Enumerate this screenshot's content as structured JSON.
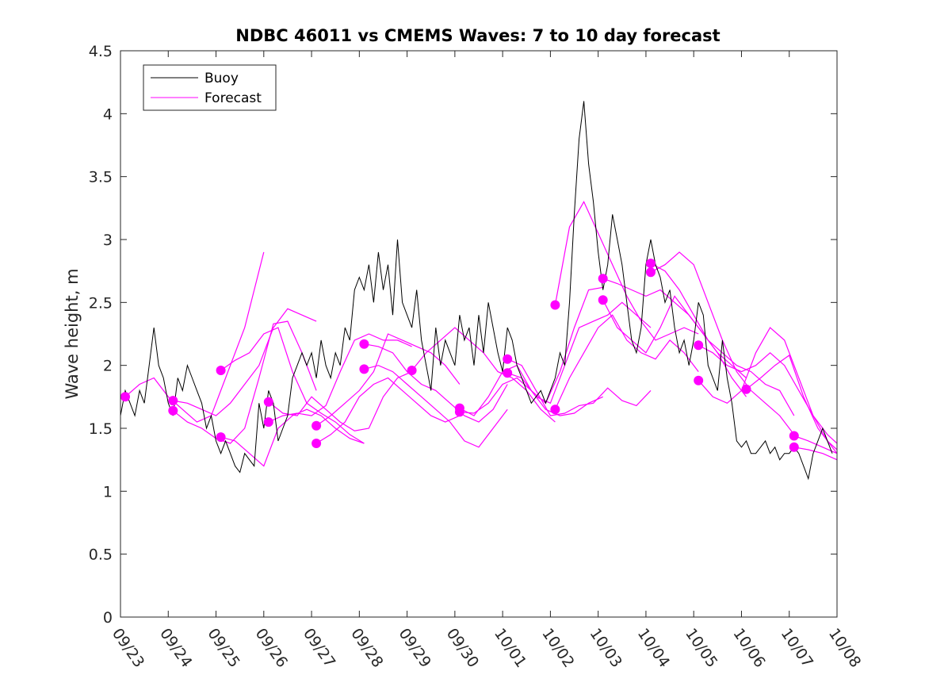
{
  "chart_data": {
    "type": "line",
    "title": "NDBC 46011 vs CMEMS Waves: 7 to 10 day forecast",
    "xlabel": "",
    "ylabel": "Wave height, m",
    "xlim": [
      0,
      15
    ],
    "ylim": [
      0,
      4.5
    ],
    "yticks": [
      0,
      0.5,
      1,
      1.5,
      2,
      2.5,
      3,
      3.5,
      4,
      4.5
    ],
    "ytick_labels": [
      "0",
      "0.5",
      "1",
      "1.5",
      "2",
      "2.5",
      "3",
      "3.5",
      "4",
      "4.5"
    ],
    "xtick_labels": [
      "09/23",
      "09/24",
      "09/25",
      "09/26",
      "09/27",
      "09/28",
      "09/29",
      "09/30",
      "10/01",
      "10/02",
      "10/03",
      "10/04",
      "10/05",
      "10/06",
      "10/07",
      "10/08"
    ],
    "legend": {
      "placement": "top-left",
      "entries": [
        "Buoy",
        "Forecast"
      ]
    },
    "colors": {
      "buoy": "#000000",
      "forecast": "#ff00ff"
    },
    "buoy": {
      "name": "Buoy",
      "x": [
        0,
        0.1,
        0.2,
        0.3,
        0.4,
        0.5,
        0.6,
        0.7,
        0.8,
        0.9,
        1.0,
        1.1,
        1.2,
        1.3,
        1.4,
        1.5,
        1.6,
        1.7,
        1.8,
        1.9,
        2.0,
        2.1,
        2.2,
        2.3,
        2.4,
        2.5,
        2.6,
        2.7,
        2.8,
        2.9,
        3.0,
        3.1,
        3.2,
        3.3,
        3.4,
        3.5,
        3.6,
        3.7,
        3.8,
        3.9,
        4.0,
        4.1,
        4.2,
        4.3,
        4.4,
        4.5,
        4.6,
        4.7,
        4.8,
        4.9,
        5.0,
        5.1,
        5.2,
        5.3,
        5.4,
        5.5,
        5.6,
        5.7,
        5.8,
        5.9,
        6.0,
        6.1,
        6.2,
        6.3,
        6.4,
        6.5,
        6.6,
        6.7,
        6.8,
        6.9,
        7.0,
        7.1,
        7.2,
        7.3,
        7.4,
        7.5,
        7.6,
        7.7,
        7.8,
        7.9,
        8.0,
        8.1,
        8.2,
        8.3,
        8.4,
        8.5,
        8.6,
        8.7,
        8.8,
        8.9,
        9.0,
        9.1,
        9.2,
        9.3,
        9.4,
        9.5,
        9.6,
        9.7,
        9.8,
        9.9,
        10.0,
        10.1,
        10.2,
        10.3,
        10.4,
        10.5,
        10.6,
        10.7,
        10.8,
        10.9,
        11.0,
        11.1,
        11.2,
        11.3,
        11.4,
        11.5,
        11.6,
        11.7,
        11.8,
        11.9,
        12.0,
        12.1,
        12.2,
        12.3,
        12.4,
        12.5,
        12.6,
        12.7,
        12.8,
        12.9,
        13.0,
        13.1,
        13.2,
        13.3,
        13.4,
        13.5,
        13.6,
        13.7,
        13.8,
        13.9,
        14.0,
        14.1,
        14.2,
        14.3,
        14.4,
        14.5,
        14.6,
        14.7,
        14.8,
        14.9
      ],
      "values": [
        1.6,
        1.8,
        1.7,
        1.6,
        1.8,
        1.7,
        2.0,
        2.3,
        2.0,
        1.9,
        1.7,
        1.6,
        1.9,
        1.8,
        2.0,
        1.9,
        1.8,
        1.7,
        1.5,
        1.6,
        1.4,
        1.3,
        1.4,
        1.3,
        1.2,
        1.15,
        1.3,
        1.25,
        1.2,
        1.7,
        1.5,
        1.8,
        1.7,
        1.4,
        1.5,
        1.6,
        1.9,
        2.0,
        2.1,
        2.0,
        2.1,
        1.9,
        2.2,
        2.0,
        1.9,
        2.1,
        2.0,
        2.3,
        2.2,
        2.6,
        2.7,
        2.6,
        2.8,
        2.5,
        2.9,
        2.6,
        2.8,
        2.4,
        3.0,
        2.5,
        2.4,
        2.3,
        2.6,
        2.2,
        2.0,
        1.8,
        2.3,
        2.0,
        2.2,
        2.1,
        2.0,
        2.4,
        2.2,
        2.3,
        2.0,
        2.4,
        2.1,
        2.5,
        2.3,
        2.1,
        1.95,
        2.3,
        2.2,
        2.0,
        1.9,
        1.8,
        1.7,
        1.75,
        1.8,
        1.7,
        1.8,
        1.9,
        2.1,
        2.0,
        2.5,
        3.2,
        3.8,
        4.1,
        3.6,
        3.3,
        2.9,
        2.6,
        2.8,
        3.2,
        3.0,
        2.8,
        2.5,
        2.2,
        2.1,
        2.3,
        2.8,
        3.0,
        2.8,
        2.7,
        2.5,
        2.6,
        2.3,
        2.1,
        2.2,
        2.0,
        2.2,
        2.5,
        2.4,
        2.0,
        1.9,
        1.8,
        2.2,
        1.9,
        1.7,
        1.4,
        1.35,
        1.4,
        1.3,
        1.3,
        1.35,
        1.4,
        1.3,
        1.35,
        1.25,
        1.3,
        1.3,
        1.35,
        1.3,
        1.2,
        1.1,
        1.3,
        1.4,
        1.5,
        1.4,
        1.3
      ]
    },
    "series": [
      {
        "name": "Forecast",
        "x": [
          0.1,
          0.4,
          0.7,
          1.0,
          1.3,
          1.6,
          1.9,
          2.2,
          2.6,
          3.0
        ],
        "values": [
          1.75,
          1.85,
          1.9,
          1.75,
          1.65,
          1.55,
          1.6,
          1.9,
          2.3,
          2.9
        ]
      },
      {
        "name": "Forecast",
        "x": [
          1.1,
          1.4,
          1.7,
          2.0,
          2.3,
          2.6,
          2.9,
          3.2,
          3.5,
          3.8,
          4.1
        ],
        "values": [
          1.72,
          1.7,
          1.65,
          1.6,
          1.7,
          1.85,
          2.0,
          2.3,
          2.45,
          2.4,
          2.35
        ]
      },
      {
        "name": "Forecast",
        "x": [
          1.1,
          1.4,
          1.7,
          2.0,
          2.3,
          2.6,
          2.9,
          3.2,
          3.5,
          3.8,
          4.1
        ],
        "values": [
          1.64,
          1.55,
          1.5,
          1.42,
          1.38,
          1.5,
          1.9,
          2.33,
          2.35,
          2.1,
          1.8
        ]
      },
      {
        "name": "Forecast",
        "x": [
          2.1,
          2.4,
          2.7,
          3.0,
          3.3,
          3.6,
          3.9,
          4.2,
          4.5,
          4.8,
          5.1
        ],
        "values": [
          1.96,
          2.04,
          2.1,
          2.25,
          2.3,
          1.95,
          1.7,
          1.62,
          1.55,
          1.45,
          1.38
        ]
      },
      {
        "name": "Forecast",
        "x": [
          2.1,
          2.4,
          2.7,
          3.0,
          3.3,
          3.6,
          3.9,
          4.2,
          4.5,
          4.8,
          5.1
        ],
        "values": [
          1.43,
          1.4,
          1.3,
          1.2,
          1.5,
          1.6,
          1.65,
          1.6,
          1.5,
          1.42,
          1.38
        ]
      },
      {
        "name": "Forecast",
        "x": [
          3.1,
          3.4,
          3.7,
          4.0,
          4.3,
          4.6,
          4.9,
          5.2,
          5.5,
          5.8,
          6.1
        ],
        "values": [
          1.71,
          1.62,
          1.6,
          1.75,
          1.65,
          1.55,
          1.48,
          1.5,
          1.75,
          1.9,
          1.95
        ]
      },
      {
        "name": "Forecast",
        "x": [
          3.1,
          3.4,
          3.7,
          4.0,
          4.3,
          4.6,
          4.9,
          5.2,
          5.5,
          5.8,
          6.1
        ],
        "values": [
          1.55,
          1.6,
          1.62,
          1.6,
          1.68,
          1.95,
          2.2,
          2.25,
          2.2,
          2.2,
          2.15
        ]
      },
      {
        "name": "Forecast",
        "x": [
          4.1,
          4.4,
          4.7,
          5.0,
          5.3,
          5.6,
          5.9,
          6.2,
          6.5,
          6.8,
          7.1
        ],
        "values": [
          1.52,
          1.6,
          1.7,
          1.8,
          1.95,
          2.25,
          2.2,
          2.15,
          2.1,
          2.0,
          1.85
        ]
      },
      {
        "name": "Forecast",
        "x": [
          4.1,
          4.4,
          4.7,
          5.0,
          5.3,
          5.6,
          5.9,
          6.2,
          6.5,
          6.8,
          7.1
        ],
        "values": [
          1.38,
          1.45,
          1.55,
          1.75,
          1.85,
          1.9,
          1.8,
          1.7,
          1.6,
          1.55,
          1.6
        ]
      },
      {
        "name": "Forecast",
        "x": [
          5.1,
          5.4,
          5.7,
          6.0,
          6.3,
          6.6,
          6.9,
          7.2,
          7.5,
          7.8,
          8.1
        ],
        "values": [
          2.17,
          2.15,
          2.1,
          1.95,
          1.85,
          1.8,
          1.7,
          1.6,
          1.55,
          1.65,
          1.85
        ]
      },
      {
        "name": "Forecast",
        "x": [
          5.1,
          5.4,
          5.7,
          6.0,
          6.3,
          6.6,
          6.9,
          7.2,
          7.5,
          7.8,
          8.1
        ],
        "values": [
          1.97,
          2.0,
          1.95,
          1.85,
          1.75,
          1.65,
          1.55,
          1.4,
          1.35,
          1.5,
          1.65
        ]
      },
      {
        "name": "Forecast",
        "x": [
          6.1,
          6.4,
          6.7,
          7.0,
          7.3,
          7.6,
          7.9,
          8.2,
          8.5,
          8.8,
          9.1
        ],
        "values": [
          1.96,
          2.1,
          2.2,
          2.3,
          2.2,
          2.1,
          1.95,
          1.9,
          1.8,
          1.65,
          1.55
        ]
      },
      {
        "name": "Forecast",
        "x": [
          7.1,
          7.4,
          7.7,
          8.0,
          8.3,
          8.6,
          8.9,
          9.2,
          9.5,
          9.8,
          10.1
        ],
        "values": [
          1.66,
          1.6,
          1.75,
          1.95,
          2.0,
          1.8,
          1.65,
          1.6,
          1.62,
          1.7,
          1.75
        ]
      },
      {
        "name": "Forecast",
        "x": [
          7.1,
          7.4,
          7.7,
          8.0,
          8.3,
          8.6,
          8.9,
          9.2,
          9.5,
          9.8,
          10.1
        ],
        "values": [
          1.63,
          1.62,
          1.7,
          1.85,
          1.9,
          1.8,
          1.7,
          1.95,
          2.3,
          2.6,
          2.62
        ]
      },
      {
        "name": "Forecast",
        "x": [
          8.1,
          8.4,
          8.7,
          9.0,
          9.3,
          9.6,
          9.9,
          10.2,
          10.5,
          10.8,
          11.1
        ],
        "values": [
          2.05,
          2.0,
          1.8,
          1.6,
          1.62,
          1.68,
          1.7,
          1.82,
          1.72,
          1.68,
          1.8
        ]
      },
      {
        "name": "Forecast",
        "x": [
          8.1,
          8.4,
          8.7,
          9.0,
          9.3,
          9.6,
          9.9,
          10.2,
          10.5,
          10.8,
          11.1
        ],
        "values": [
          1.94,
          1.9,
          1.75,
          1.7,
          2.0,
          2.3,
          2.35,
          2.4,
          2.5,
          2.4,
          2.3
        ]
      },
      {
        "name": "Forecast",
        "x": [
          9.1,
          9.4,
          9.7,
          10.0,
          10.3,
          10.6,
          10.9,
          11.2,
          11.5,
          11.8,
          12.1
        ],
        "values": [
          2.48,
          3.1,
          3.3,
          3.05,
          2.8,
          2.55,
          2.35,
          2.2,
          2.25,
          2.3,
          2.25
        ]
      },
      {
        "name": "Forecast",
        "x": [
          9.1,
          9.4,
          9.7,
          10.0,
          10.3,
          10.6,
          10.9,
          11.2,
          11.5,
          11.8,
          12.1
        ],
        "values": [
          1.65,
          1.9,
          2.1,
          2.3,
          2.4,
          2.2,
          2.1,
          2.05,
          2.2,
          2.1,
          1.95
        ]
      },
      {
        "name": "Forecast",
        "x": [
          10.1,
          10.4,
          10.7,
          11.0,
          11.3,
          11.6,
          11.9,
          12.2,
          12.5,
          12.8,
          13.1
        ],
        "values": [
          2.69,
          2.65,
          2.6,
          2.55,
          2.6,
          2.5,
          2.4,
          2.25,
          2.1,
          2.0,
          1.9
        ]
      },
      {
        "name": "Forecast",
        "x": [
          10.1,
          10.4,
          10.7,
          11.0,
          11.3,
          11.6,
          11.9,
          12.2,
          12.5,
          12.8,
          13.1
        ],
        "values": [
          2.52,
          2.3,
          2.2,
          2.1,
          2.3,
          2.55,
          2.4,
          2.25,
          2.1,
          1.9,
          1.75
        ]
      },
      {
        "name": "Forecast",
        "x": [
          11.1,
          11.4,
          11.7,
          12.0,
          12.3,
          12.6,
          12.9,
          13.2,
          13.5,
          13.8,
          14.1
        ],
        "values": [
          2.81,
          2.75,
          2.6,
          2.4,
          2.2,
          2.1,
          2.0,
          1.95,
          1.85,
          1.8,
          1.6
        ]
      },
      {
        "name": "Forecast",
        "x": [
          11.1,
          11.4,
          11.7,
          12.0,
          12.3,
          12.6,
          12.9,
          13.2,
          13.5,
          13.8,
          14.1
        ],
        "values": [
          2.74,
          2.8,
          2.9,
          2.8,
          2.5,
          2.2,
          1.95,
          1.8,
          1.7,
          1.6,
          1.45
        ]
      },
      {
        "name": "Forecast",
        "x": [
          12.1,
          12.4,
          12.7,
          13.0,
          13.3,
          13.6,
          13.9,
          14.2,
          14.5,
          14.8,
          15.0
        ],
        "values": [
          2.16,
          2.1,
          2.0,
          1.95,
          2.0,
          2.1,
          2.0,
          1.8,
          1.6,
          1.45,
          1.38
        ]
      },
      {
        "name": "Forecast",
        "x": [
          12.1,
          12.4,
          12.7,
          13.0,
          13.3,
          13.6,
          13.9,
          14.2,
          14.5,
          14.8,
          15.0
        ],
        "values": [
          1.88,
          1.75,
          1.7,
          1.8,
          2.1,
          2.3,
          2.2,
          1.9,
          1.6,
          1.4,
          1.33
        ]
      },
      {
        "name": "Forecast",
        "x": [
          13.1,
          13.4,
          13.7,
          14.0,
          14.3,
          14.6,
          15.0
        ],
        "values": [
          1.81,
          1.9,
          2.0,
          2.08,
          1.75,
          1.5,
          1.3
        ]
      },
      {
        "name": "Forecast",
        "x": [
          14.1,
          14.4,
          14.7,
          15.0
        ],
        "values": [
          1.44,
          1.4,
          1.35,
          1.3
        ]
      },
      {
        "name": "Forecast",
        "x": [
          14.1,
          14.4,
          14.7,
          15.0
        ],
        "values": [
          1.35,
          1.33,
          1.3,
          1.25
        ]
      }
    ]
  }
}
